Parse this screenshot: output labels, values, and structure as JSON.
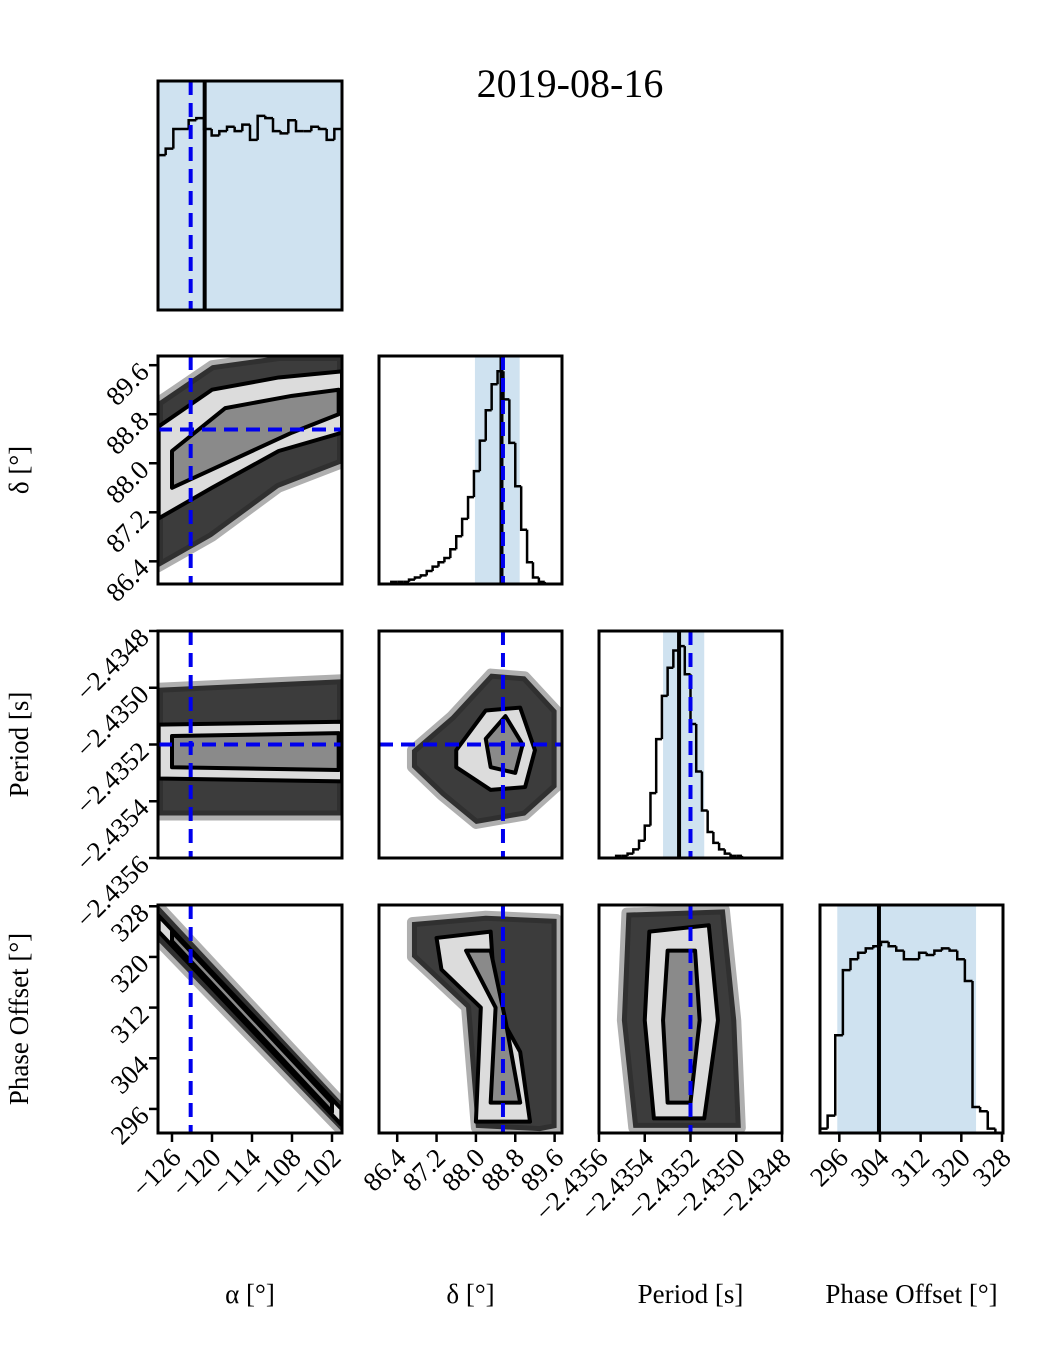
{
  "chart_data": {
    "type": "corner",
    "title": "2019-08-16",
    "truth_color": "#0000ee",
    "median_color": "#000000",
    "interval_color": "#cfe2f0",
    "cloud_color": "#1a1a1a",
    "contour_fills": [
      "#dcdcdc",
      "#8a8a8a"
    ],
    "hist_ylim": [
      0,
      105
    ],
    "parameters": [
      {
        "label": "α [°]",
        "lim": [
          -128.1,
          -100.5
        ],
        "ticks": [
          {
            "value": -126,
            "label": "−126"
          },
          {
            "value": -120,
            "label": "−120"
          },
          {
            "value": -114,
            "label": "−114"
          },
          {
            "value": -108,
            "label": "−108"
          },
          {
            "value": -102,
            "label": "−102"
          }
        ],
        "truth": -123.2,
        "median": -121.1,
        "interval": [
          -128.1,
          -100.5
        ],
        "bins": [
          -128.1,
          -126.95,
          -125.8,
          -124.65,
          -123.5,
          -122.35,
          -121.2,
          -120.05,
          -118.9,
          -117.75,
          -116.6,
          -115.45,
          -114.3,
          -113.15,
          -112,
          -110.85,
          -109.7,
          -108.55,
          -107.4,
          -106.25,
          -105.1,
          -103.95,
          -102.8,
          -101.65,
          -100.5
        ],
        "counts": [
          71,
          74,
          83,
          83,
          87,
          88,
          83,
          80,
          82,
          84,
          82,
          85,
          78,
          89,
          88,
          82,
          81,
          87,
          82,
          82,
          84,
          83,
          78,
          83
        ]
      },
      {
        "label": "δ [°]",
        "lim": [
          86.03,
          89.75
        ],
        "ticks": [
          86.4,
          87.2,
          {
            "value": 88.0,
            "label": "88.0"
          },
          88.8,
          89.6
        ],
        "truth": 88.55,
        "median": 88.52,
        "interval": [
          87.98,
          88.89
        ],
        "bins": [
          86.04,
          86.16,
          86.28,
          86.4,
          86.52,
          86.64,
          86.76,
          86.88,
          87.0,
          87.12,
          87.24,
          87.36,
          87.48,
          87.6,
          87.72,
          87.84,
          87.96,
          88.08,
          88.2,
          88.32,
          88.44,
          88.56,
          88.68,
          88.8,
          88.92,
          89.04,
          89.16,
          89.28,
          89.4,
          89.52,
          89.64
        ],
        "counts": [
          0,
          0,
          1,
          1,
          1,
          2,
          3,
          4,
          6,
          8,
          10,
          12,
          16,
          22,
          30,
          40,
          52,
          66,
          80,
          92,
          98,
          85,
          65,
          45,
          25,
          10,
          3,
          1,
          0,
          0
        ]
      },
      {
        "label": "Period [s]",
        "lim": [
          -2.4356,
          -2.4348
        ],
        "ticks": [
          {
            "value": -2.4356,
            "label": "−2.4356"
          },
          {
            "value": -2.4354,
            "label": "−2.4354"
          },
          {
            "value": -2.4352,
            "label": "−2.4352"
          },
          {
            "value": -2.435,
            "label": "−2.4350"
          },
          {
            "value": -2.4348,
            "label": "−2.4348"
          }
        ],
        "truth": -2.4352,
        "median": -2.43525,
        "interval": [
          -2.43532,
          -2.43514
        ],
        "bins": [
          -2.4356,
          -2.435575,
          -2.43555,
          -2.435525,
          -2.4355,
          -2.435475,
          -2.43545,
          -2.435425,
          -2.4354,
          -2.435375,
          -2.43535,
          -2.435325,
          -2.4353,
          -2.435275,
          -2.43525,
          -2.435225,
          -2.4352,
          -2.435175,
          -2.43515,
          -2.435125,
          -2.4351,
          -2.435075,
          -2.43505,
          -2.435025,
          -2.435,
          -2.434975,
          -2.43495,
          -2.434925,
          -2.4349,
          -2.434875,
          -2.43485,
          -2.434825,
          -2.4348
        ],
        "counts": [
          0,
          0,
          0,
          1,
          1,
          2,
          4,
          8,
          15,
          30,
          55,
          75,
          88,
          96,
          98,
          85,
          62,
          40,
          22,
          12,
          7,
          4,
          2,
          1,
          1,
          0,
          0,
          0,
          0,
          0,
          0,
          0
        ]
      },
      {
        "label": "Phase Offset [°]",
        "lim": [
          292.2,
          328.2
        ],
        "ticks": [
          296,
          304,
          312,
          320,
          328
        ],
        "truth": null,
        "median": 303.8,
        "interval": [
          295.6,
          322.9
        ],
        "bins": [
          292.2,
          293.7,
          295.2,
          296.7,
          298.2,
          299.7,
          301.2,
          302.7,
          304.2,
          305.7,
          307.2,
          308.7,
          310.2,
          311.7,
          313.2,
          314.7,
          316.2,
          317.7,
          319.2,
          320.7,
          322.2,
          323.7,
          325.2,
          326.7,
          328.2
        ],
        "counts": [
          2,
          8,
          45,
          75,
          80,
          83,
          85,
          86,
          88,
          86,
          84,
          80,
          80,
          83,
          82,
          84,
          85,
          84,
          80,
          70,
          12,
          10,
          2,
          0
        ]
      }
    ],
    "pairs": [
      [
        {
          "cloud": {
            "x": [
              -128.1,
              -120,
              -110,
              -100.5,
              -100.5,
              -110,
              -120,
              -128.1
            ],
            "y": [
              89.0,
              89.6,
              89.75,
              89.75,
              88.0,
              87.6,
              86.8,
              86.3
            ]
          },
          "contours": [
            {
              "x": [
                -128,
                -120,
                -110,
                -100.5,
                -100.5,
                -110,
                -120,
                -128
              ],
              "y": [
                88.6,
                89.2,
                89.4,
                89.5,
                88.5,
                88.2,
                87.6,
                87.1
              ]
            },
            {
              "x": [
                -126,
                -118,
                -108,
                -101,
                -101,
                -108,
                -118,
                -126
              ],
              "y": [
                88.2,
                88.9,
                89.1,
                89.2,
                88.8,
                88.5,
                88.0,
                87.6
              ]
            }
          ]
        }
      ],
      [
        {
          "cloud": {
            "x": [
              -128.1,
              -100.5,
              -100.5,
              -128.1
            ],
            "y": [
              -2.435,
              -2.43497,
              -2.43545,
              -2.43545
            ]
          },
          "contours": [
            {
              "x": [
                -128,
                -100.5,
                -100.5,
                -128
              ],
              "y": [
                -2.43513,
                -2.43512,
                -2.43533,
                -2.43532
              ]
            },
            {
              "x": [
                -126,
                -101,
                -101,
                -126
              ],
              "y": [
                -2.43517,
                -2.43516,
                -2.43529,
                -2.43528
              ]
            }
          ]
        },
        {
          "cloud": {
            "x": [
              86.7,
              87.5,
              88.3,
              89.0,
              89.64,
              89.64,
              89.0,
              88.0,
              87.3,
              86.7
            ],
            "y": [
              -2.43522,
              -2.4351,
              -2.43495,
              -2.43496,
              -2.43508,
              -2.43535,
              -2.43545,
              -2.43548,
              -2.43538,
              -2.43528
            ]
          },
          "contours": [
            {
              "x": [
                87.6,
                88.2,
                88.9,
                89.2,
                89.0,
                88.3,
                87.6
              ],
              "y": [
                -2.43522,
                -2.43508,
                -2.43507,
                -2.43522,
                -2.43535,
                -2.43536,
                -2.43528
              ]
            },
            {
              "x": [
                88.2,
                88.6,
                88.95,
                88.8,
                88.3
              ],
              "y": [
                -2.43518,
                -2.4351,
                -2.4352,
                -2.4353,
                -2.43528
              ]
            }
          ]
        }
      ],
      [
        {
          "cloud": {
            "x": [
              -128.1,
              -128.1,
              -100.5,
              -100.5
            ],
            "y": [
              328.2,
              322.5,
              292.4,
              297.0
            ]
          },
          "contours": [
            {
              "x": [
                -128,
                -100.6,
                -100.6,
                -128
              ],
              "y": [
                326.5,
                296.0,
                293.5,
                324.0
              ]
            },
            {
              "x": [
                -126,
                -102,
                -102,
                -126
              ],
              "y": [
                324.0,
                297.0,
                295.5,
                322.5
              ]
            }
          ]
        },
        {
          "cloud": {
            "x": [
              86.7,
              88.2,
              89.64,
              89.64,
              89.3,
              88.0,
              87.8,
              86.7
            ],
            "y": [
              325.5,
              326.5,
              326.0,
              293.0,
              292.5,
              293.0,
              312.0,
              320.0
            ]
          },
          "contours": [
            {
              "x": [
                87.2,
                88.3,
                88.4,
                88.9,
                89.1,
                88.0,
                88.1,
                87.3
              ],
              "y": [
                323,
                324,
                312,
                305,
                294,
                294,
                312,
                318
              ]
            },
            {
              "x": [
                87.8,
                88.3,
                88.6,
                88.9,
                88.3,
                88.4
              ],
              "y": [
                321,
                321,
                310,
                297,
                297,
                312
              ]
            }
          ]
        },
        {
          "cloud": {
            "x": [
              -2.43548,
              -2.43505,
              -2.435,
              -2.43498,
              -2.43545,
              -2.4355
            ],
            "y": [
              327.0,
              327.5,
              310.0,
              293.0,
              293.0,
              310.0
            ]
          },
          "contours": [
            {
              "x": [
                -2.43538,
                -2.43512,
                -2.43508,
                -2.43514,
                -2.43536,
                -2.4354
              ],
              "y": [
                324,
                325,
                310,
                294.5,
                294.5,
                310
              ]
            },
            {
              "x": [
                -2.4353,
                -2.43518,
                -2.43516,
                -2.4352,
                -2.4353,
                -2.43532
              ],
              "y": [
                321,
                321,
                310,
                297,
                297,
                310
              ]
            }
          ]
        }
      ]
    ]
  }
}
